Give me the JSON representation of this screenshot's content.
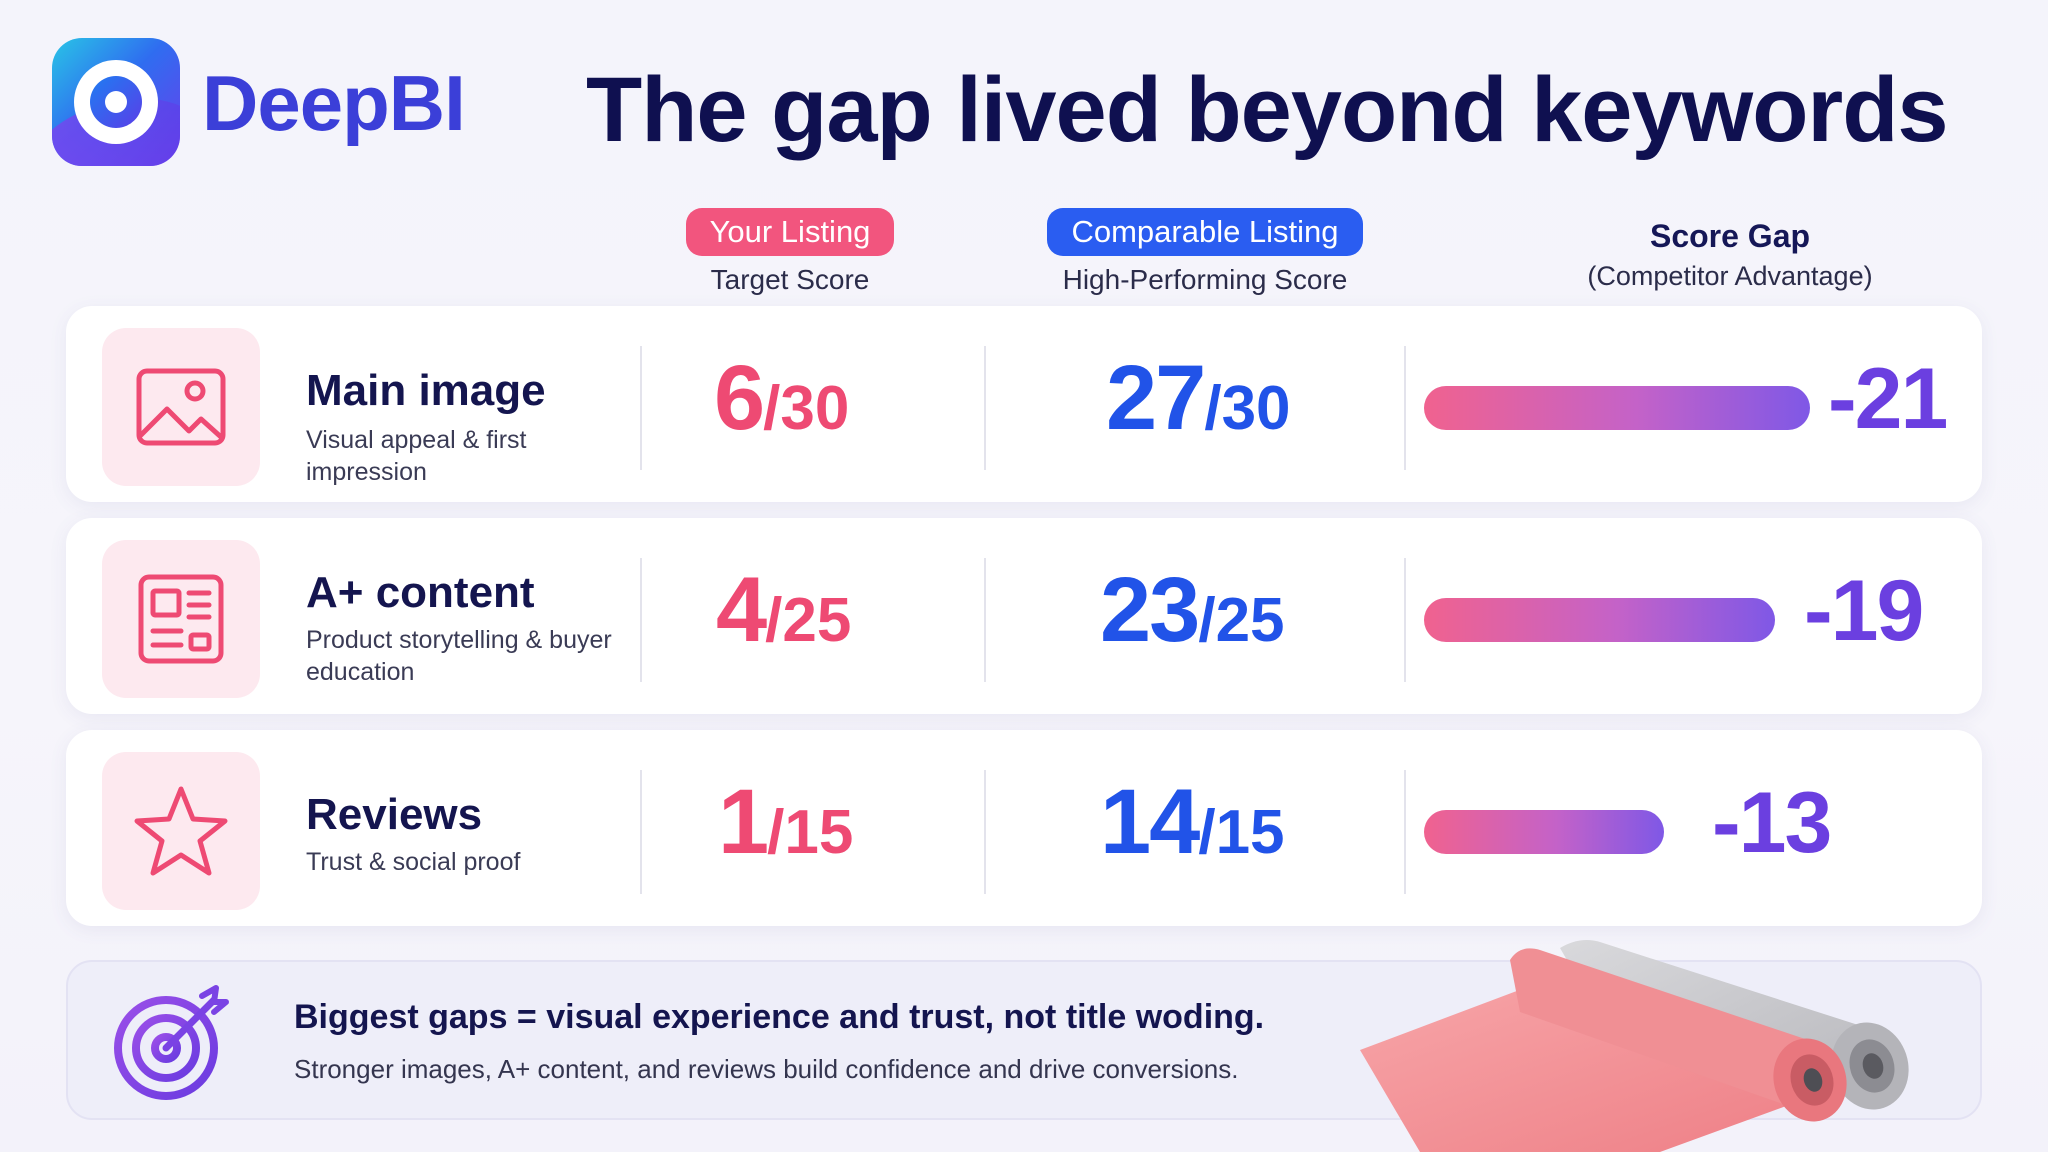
{
  "brand": {
    "name": "DeepBI"
  },
  "headline": "The gap lived beyond keywords",
  "columns": {
    "your": {
      "pill": "Your Listing",
      "sub": "Target Score"
    },
    "comparable": {
      "pill": "Comparable Listing",
      "sub": "High-Performing Score"
    },
    "gap": {
      "title": "Score Gap",
      "sub": "(Competitor Advantage)"
    }
  },
  "rows": [
    {
      "icon": "image-icon",
      "title": "Main image",
      "desc": "Visual appeal & first impression",
      "your_score": "6",
      "your_max": "/30",
      "comp_score": "27",
      "comp_max": "/30",
      "gap": "-21",
      "gap_value": 21
    },
    {
      "icon": "document-icon",
      "title": "A+ content",
      "desc": "Product storytelling & buyer education",
      "your_score": "4",
      "your_max": "/25",
      "comp_score": "23",
      "comp_max": "/25",
      "gap": "-19",
      "gap_value": 19
    },
    {
      "icon": "star-icon",
      "title": "Reviews",
      "desc": "Trust & social proof",
      "your_score": "1",
      "your_max": "/15",
      "comp_score": "14",
      "comp_max": "/15",
      "gap": "-13",
      "gap_value": 13
    }
  ],
  "footer": {
    "main": "Biggest gaps = visual experience and trust, not title woding.",
    "sub": "Stronger images, A+ content, and reviews build confidence and drive conversions."
  },
  "colors": {
    "pink": "#ee4a73",
    "blue": "#2153e8",
    "purple": "#6b3fe0",
    "navy": "#14154f"
  }
}
